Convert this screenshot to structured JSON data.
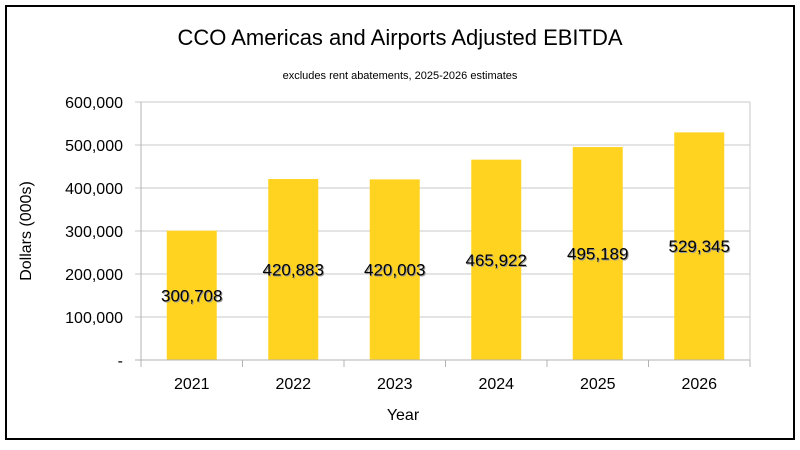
{
  "chart_data": {
    "type": "bar",
    "title": "CCO Americas and Airports Adjusted EBITDA",
    "subtitle": "excludes rent abatements, 2025-2026 estimates",
    "xlabel": "Year",
    "ylabel": "Dollars (000s)",
    "categories": [
      "2021",
      "2022",
      "2023",
      "2024",
      "2025",
      "2026"
    ],
    "values": [
      300708,
      420883,
      420003,
      465922,
      495189,
      529345
    ],
    "data_labels": [
      "300,708",
      "420,883",
      "420,003",
      "465,922",
      "495,189",
      "529,345"
    ],
    "ylim": [
      0,
      600000
    ],
    "yticks": [
      0,
      100000,
      200000,
      300000,
      400000,
      500000,
      600000
    ],
    "ytick_labels": [
      "-",
      "100,000",
      "200,000",
      "300,000",
      "400,000",
      "500,000",
      "600,000"
    ],
    "grid": true,
    "bar_color": "#FFD320"
  }
}
